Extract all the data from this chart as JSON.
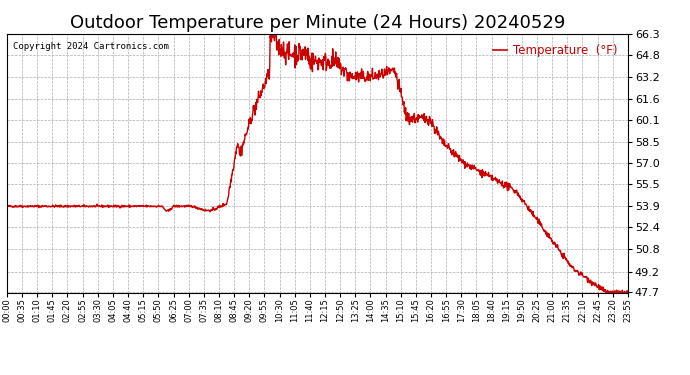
{
  "title": "Outdoor Temperature per Minute (24 Hours) 20240529",
  "copyright_text": "Copyright 2024 Cartronics.com",
  "legend_label": "Temperature  (°F)",
  "line_color": "#cc0000",
  "legend_color": "#cc0000",
  "copyright_color": "#000000",
  "bg_color": "#ffffff",
  "grid_color": "#999999",
  "ylim": [
    47.7,
    66.3
  ],
  "yticks": [
    47.7,
    49.2,
    50.8,
    52.4,
    53.9,
    55.5,
    57.0,
    58.5,
    60.1,
    61.6,
    63.2,
    64.8,
    66.3
  ],
  "xtick_labels": [
    "00:00",
    "00:35",
    "01:10",
    "01:45",
    "02:20",
    "02:55",
    "03:30",
    "04:05",
    "04:40",
    "05:15",
    "05:50",
    "06:25",
    "07:00",
    "07:35",
    "08:10",
    "08:45",
    "09:20",
    "09:55",
    "10:30",
    "11:05",
    "11:40",
    "12:15",
    "12:50",
    "13:25",
    "14:00",
    "14:35",
    "15:10",
    "15:45",
    "16:20",
    "16:55",
    "17:30",
    "18:05",
    "18:40",
    "19:15",
    "19:50",
    "20:25",
    "21:00",
    "21:35",
    "22:10",
    "22:45",
    "23:20",
    "23:55"
  ],
  "title_fontsize": 13,
  "ytick_fontsize": 8,
  "xtick_fontsize": 6,
  "linewidth": 1.0,
  "n_points": 1440
}
